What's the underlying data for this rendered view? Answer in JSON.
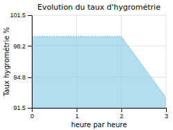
{
  "chart_data": {
    "type": "area",
    "title": "Evolution du taux d'hygrométrie",
    "xlabel": "heure par heure",
    "ylabel": "Taux hygrométrie %",
    "x": [
      0,
      2,
      3
    ],
    "values": [
      99.2,
      99.2,
      92.6
    ],
    "color": "#7ec8e3",
    "line_style": "dotted",
    "xlim": [
      0,
      3
    ],
    "ylim": [
      91.5,
      101.5
    ],
    "xticks": [
      0,
      1,
      2,
      3
    ],
    "yticks": [
      91.5,
      94.8,
      98.2,
      101.5
    ],
    "grid": true
  }
}
